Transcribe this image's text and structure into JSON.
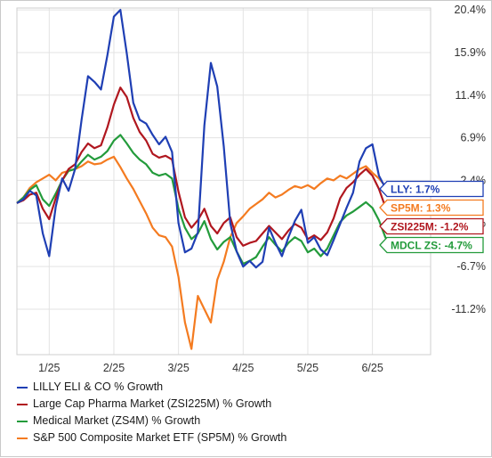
{
  "colors": {
    "lly": "#1f3fb4",
    "zsi225m": "#b0171f",
    "zs4m": "#239b3b",
    "sp5m": "#f47b20",
    "grid": "#e3e3e3",
    "axis_text": "#333333"
  },
  "legend": [
    {
      "label": "LILLY ELI & CO % Growth",
      "color": "#1f3fb4"
    },
    {
      "label": "Large Cap Pharma Market (ZSI225M) % Growth",
      "color": "#b0171f"
    },
    {
      "label": "Medical Market (ZS4M) % Growth",
      "color": "#239b3b"
    },
    {
      "label": "S&P 500 Composite Market ETF (SP5M) % Growth",
      "color": "#f47b20"
    }
  ],
  "chart_data": {
    "type": "line",
    "title": "",
    "xlabel": "",
    "ylabel": "",
    "x_tick_labels": [
      "1/25",
      "2/25",
      "3/25",
      "4/25",
      "5/25",
      "6/25"
    ],
    "x_tick_positions": [
      0.05,
      0.15,
      0.25,
      0.35,
      0.45,
      0.55
    ],
    "y_tick_labels": [
      "20.4%",
      "15.9%",
      "11.4%",
      "6.9%",
      "2.4%",
      "-2.1%",
      "-6.7%",
      "-11.2%"
    ],
    "y_ticks": [
      20.4,
      15.9,
      11.4,
      6.9,
      2.4,
      -2.1,
      -6.7,
      -11.2
    ],
    "xlim": [
      0,
      0.64
    ],
    "ylim": [
      -16.0,
      20.6
    ],
    "grid": true,
    "legend_position": "bottom",
    "end_labels": [
      {
        "series": "LLY",
        "text": "LLY: 1.7%",
        "value": 1.7,
        "color": "#1f3fb4"
      },
      {
        "series": "SP5M",
        "text": "SP5M: 1.3%",
        "value": 1.3,
        "color": "#f47b20"
      },
      {
        "series": "ZSI225M",
        "text": "ZSI225M: -1.2%",
        "value": -1.2,
        "color": "#b0171f"
      },
      {
        "series": "ZS4M",
        "text": "MDCL ZS: -4.7%",
        "value": -4.7,
        "color": "#239b3b"
      }
    ],
    "series": [
      {
        "name": "LILLY ELI & CO % Growth",
        "color": "#1f3fb4",
        "x": [
          0.0,
          0.01,
          0.02,
          0.03,
          0.04,
          0.05,
          0.06,
          0.07,
          0.08,
          0.09,
          0.1,
          0.11,
          0.12,
          0.13,
          0.14,
          0.15,
          0.16,
          0.17,
          0.18,
          0.19,
          0.2,
          0.21,
          0.22,
          0.23,
          0.24,
          0.25,
          0.26,
          0.27,
          0.28,
          0.29,
          0.3,
          0.31,
          0.32,
          0.33,
          0.34,
          0.35,
          0.36,
          0.37,
          0.38,
          0.39,
          0.4,
          0.41,
          0.42,
          0.43,
          0.44,
          0.45,
          0.46,
          0.47,
          0.48,
          0.49,
          0.5,
          0.51,
          0.52,
          0.53,
          0.54,
          0.55,
          0.56,
          0.57,
          0.58,
          0.59,
          0.6
        ],
        "values": [
          0.0,
          0.4,
          1.3,
          0.8,
          -3.2,
          -5.6,
          -0.4,
          2.6,
          1.3,
          3.6,
          8.8,
          13.4,
          12.8,
          12.0,
          15.6,
          19.7,
          20.4,
          15.8,
          10.6,
          8.8,
          8.4,
          7.2,
          6.2,
          7.0,
          5.4,
          -2.1,
          -5.2,
          -4.8,
          -3.1,
          8.2,
          14.8,
          12.3,
          6.0,
          -2.1,
          -5.1,
          -6.7,
          -6.1,
          -6.8,
          -6.2,
          -2.6,
          -4.2,
          -5.6,
          -3.6,
          -1.9,
          -0.7,
          -4.2,
          -3.6,
          -4.9,
          -5.5,
          -3.9,
          -2.2,
          -0.5,
          1.1,
          4.4,
          5.8,
          6.2,
          2.9,
          1.6,
          1.7,
          1.6,
          1.7
        ]
      },
      {
        "name": "Large Cap Pharma Market (ZSI225M) % Growth",
        "color": "#b0171f",
        "x": [
          0.0,
          0.01,
          0.02,
          0.03,
          0.04,
          0.05,
          0.06,
          0.07,
          0.08,
          0.09,
          0.1,
          0.11,
          0.12,
          0.13,
          0.14,
          0.15,
          0.16,
          0.17,
          0.18,
          0.19,
          0.2,
          0.21,
          0.22,
          0.23,
          0.24,
          0.25,
          0.26,
          0.27,
          0.28,
          0.29,
          0.3,
          0.31,
          0.32,
          0.33,
          0.34,
          0.35,
          0.36,
          0.37,
          0.38,
          0.39,
          0.4,
          0.41,
          0.42,
          0.43,
          0.44,
          0.45,
          0.46,
          0.47,
          0.48,
          0.49,
          0.5,
          0.51,
          0.52,
          0.53,
          0.54,
          0.55,
          0.56,
          0.57,
          0.58,
          0.59,
          0.6
        ],
        "values": [
          0.0,
          0.3,
          0.9,
          1.1,
          -0.6,
          -1.7,
          0.5,
          2.4,
          3.6,
          4.1,
          5.4,
          6.3,
          5.8,
          6.1,
          8.0,
          10.4,
          12.2,
          11.2,
          9.0,
          7.5,
          6.6,
          5.2,
          4.8,
          5.0,
          4.6,
          1.2,
          -1.5,
          -2.6,
          -1.8,
          -0.6,
          -2.4,
          -3.2,
          -2.1,
          -1.5,
          -3.6,
          -4.5,
          -4.2,
          -4.0,
          -3.2,
          -2.4,
          -3.1,
          -3.8,
          -2.9,
          -2.2,
          -2.6,
          -3.8,
          -3.4,
          -3.9,
          -3.1,
          -1.6,
          0.5,
          1.6,
          2.2,
          3.0,
          3.6,
          2.9,
          1.5,
          -0.4,
          -1.2,
          -1.1,
          -1.2
        ]
      },
      {
        "name": "Medical Market (ZS4M) % Growth",
        "color": "#239b3b",
        "x": [
          0.0,
          0.01,
          0.02,
          0.03,
          0.04,
          0.05,
          0.06,
          0.07,
          0.08,
          0.09,
          0.1,
          0.11,
          0.12,
          0.13,
          0.14,
          0.15,
          0.16,
          0.17,
          0.18,
          0.19,
          0.2,
          0.21,
          0.22,
          0.23,
          0.24,
          0.25,
          0.26,
          0.27,
          0.28,
          0.29,
          0.3,
          0.31,
          0.32,
          0.33,
          0.34,
          0.35,
          0.36,
          0.37,
          0.38,
          0.39,
          0.4,
          0.41,
          0.42,
          0.43,
          0.44,
          0.45,
          0.46,
          0.47,
          0.48,
          0.49,
          0.5,
          0.51,
          0.52,
          0.53,
          0.54,
          0.55,
          0.56,
          0.57,
          0.58,
          0.59,
          0.6
        ],
        "values": [
          0.0,
          0.6,
          1.4,
          1.9,
          0.4,
          -0.3,
          1.0,
          2.4,
          3.4,
          3.6,
          4.4,
          5.1,
          4.6,
          4.9,
          5.5,
          6.6,
          7.2,
          6.3,
          5.3,
          4.6,
          4.1,
          3.2,
          2.9,
          3.1,
          2.6,
          -0.6,
          -2.6,
          -3.8,
          -3.2,
          -1.9,
          -3.8,
          -4.9,
          -4.1,
          -3.6,
          -5.1,
          -6.4,
          -6.1,
          -5.7,
          -4.6,
          -3.6,
          -4.4,
          -5.1,
          -4.2,
          -3.6,
          -4.0,
          -5.2,
          -4.8,
          -5.6,
          -4.8,
          -3.4,
          -2.0,
          -1.3,
          -0.9,
          -0.4,
          0.1,
          -0.5,
          -1.8,
          -3.6,
          -4.7,
          -4.5,
          -4.7
        ]
      },
      {
        "name": "S&P 500 Composite Market ETF (SP5M) % Growth",
        "color": "#f47b20",
        "x": [
          0.0,
          0.01,
          0.02,
          0.03,
          0.04,
          0.05,
          0.06,
          0.07,
          0.08,
          0.09,
          0.1,
          0.11,
          0.12,
          0.13,
          0.14,
          0.15,
          0.16,
          0.17,
          0.18,
          0.19,
          0.2,
          0.21,
          0.22,
          0.23,
          0.24,
          0.25,
          0.26,
          0.27,
          0.28,
          0.29,
          0.3,
          0.31,
          0.32,
          0.33,
          0.34,
          0.35,
          0.36,
          0.37,
          0.38,
          0.39,
          0.4,
          0.41,
          0.42,
          0.43,
          0.44,
          0.45,
          0.46,
          0.47,
          0.48,
          0.49,
          0.5,
          0.51,
          0.52,
          0.53,
          0.54,
          0.55,
          0.56,
          0.57,
          0.58,
          0.59,
          0.6
        ],
        "values": [
          0.0,
          0.6,
          1.6,
          2.2,
          2.6,
          3.0,
          2.4,
          3.2,
          3.4,
          3.6,
          3.9,
          4.4,
          4.1,
          4.2,
          4.6,
          4.9,
          3.8,
          2.6,
          1.5,
          0.2,
          -1.1,
          -2.6,
          -3.4,
          -3.6,
          -4.6,
          -7.8,
          -12.6,
          -15.4,
          -9.8,
          -11.2,
          -12.6,
          -8.1,
          -6.2,
          -3.6,
          -2.1,
          -1.4,
          -0.6,
          -0.1,
          0.4,
          1.1,
          0.6,
          0.9,
          1.4,
          1.8,
          1.6,
          1.9,
          1.5,
          2.1,
          2.6,
          2.4,
          2.9,
          2.6,
          3.1,
          3.6,
          3.9,
          3.2,
          2.6,
          1.8,
          1.3,
          1.4,
          1.3
        ]
      }
    ]
  }
}
